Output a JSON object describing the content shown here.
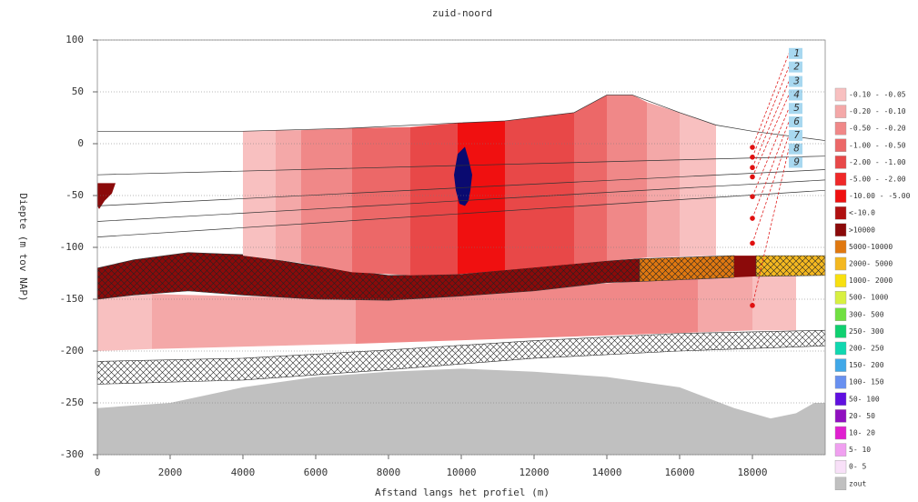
{
  "chart_data": {
    "type": "cross-section",
    "title": "zuid-noord",
    "xlabel": "Afstand langs het profiel (m)",
    "ylabel": "Diepte (m tov NAP)",
    "xlim": [
      0,
      20000
    ],
    "ylim": [
      -300,
      100
    ],
    "xticks": [
      0,
      2000,
      4000,
      6000,
      8000,
      10000,
      12000,
      14000,
      16000,
      18000
    ],
    "yticks": [
      -300,
      -250,
      -200,
      -150,
      -100,
      -50,
      0,
      50,
      100
    ],
    "grid": true,
    "zones": [
      {
        "color": "#c0c0c0",
        "x": [
          0,
          2000,
          4000,
          6000,
          8000,
          10000,
          12000,
          14000,
          16000,
          17500,
          18500,
          19200,
          19700,
          20000,
          20000,
          0
        ],
        "y": [
          -255,
          -250,
          -235,
          -225,
          -220,
          -217,
          -220,
          -225,
          -235,
          -255,
          -265,
          -260,
          -250,
          -250,
          -300,
          -300
        ]
      },
      {
        "color": "#ffffff",
        "hatch": true,
        "x": [
          0,
          4000,
          8000,
          12000,
          16000,
          20000,
          20000,
          16000,
          12000,
          8000,
          4000,
          0
        ],
        "y": [
          -210,
          -207,
          -199,
          -190,
          -183,
          -180,
          -195,
          -200,
          -207,
          -218,
          -228,
          -232
        ]
      },
      {
        "color": "#f8c0c0",
        "x": [
          0,
          1500,
          1500,
          0
        ],
        "y": [
          -150,
          -145,
          -198,
          -200
        ]
      },
      {
        "color": "#f4a8a8",
        "x": [
          1500,
          7100,
          7100,
          1500
        ],
        "y": [
          -145,
          -150,
          -193,
          -198
        ]
      },
      {
        "color": "#f08888",
        "x": [
          7100,
          16500,
          16500,
          7100
        ],
        "y": [
          -150,
          -129,
          -182,
          -193
        ]
      },
      {
        "color": "#f4a8a8",
        "x": [
          16500,
          18000,
          18000,
          16500
        ],
        "y": [
          -129,
          -128,
          -180,
          -182
        ]
      },
      {
        "color": "#f8c0c0",
        "x": [
          18000,
          19200,
          19200,
          18000
        ],
        "y": [
          -128,
          -127,
          -180,
          -180
        ]
      },
      {
        "color": "#8b0a0a",
        "hatch": true,
        "x": [
          0,
          1000,
          2500,
          4000,
          6000,
          8000,
          10000,
          12000,
          14000,
          14900,
          14900,
          14000,
          12000,
          10000,
          8000,
          6000,
          4000,
          2500,
          1000,
          0
        ],
        "y": [
          -120,
          -112,
          -105,
          -107,
          -118,
          -127,
          -126,
          -119,
          -113,
          -111,
          -133,
          -134,
          -142,
          -147,
          -151,
          -150,
          -146,
          -142,
          -146,
          -150
        ]
      },
      {
        "color": "#e07810",
        "hatch": true,
        "x": [
          14900,
          17500,
          17500,
          14900
        ],
        "y": [
          -111,
          -108,
          -129,
          -133
        ]
      },
      {
        "color": "#8b0a0a",
        "x": [
          17500,
          18100,
          18100,
          17500
        ],
        "y": [
          -108,
          -108,
          -128,
          -129
        ]
      },
      {
        "color": "#f4b820",
        "hatch": true,
        "x": [
          18100,
          20000,
          20000,
          18100
        ],
        "y": [
          -108,
          -108,
          -127,
          -128
        ]
      },
      {
        "color": "#f8c0c0",
        "x": [
          4000,
          4900,
          4900,
          4000
        ],
        "y": [
          12,
          13,
          -112,
          -108
        ]
      },
      {
        "color": "#f4a8a8",
        "x": [
          4900,
          5600,
          5600,
          4900
        ],
        "y": [
          13,
          13,
          -115,
          -112
        ]
      },
      {
        "color": "#f08888",
        "x": [
          5600,
          7000,
          7000,
          5600
        ],
        "y": [
          13,
          15,
          -124,
          -115
        ]
      },
      {
        "color": "#ec6868",
        "x": [
          7000,
          8600,
          8600,
          7000
        ],
        "y": [
          15,
          16,
          -127,
          -124
        ]
      },
      {
        "color": "#e84848",
        "x": [
          8600,
          9900,
          9900,
          8600
        ],
        "y": [
          16,
          20,
          -126,
          -127
        ]
      },
      {
        "color": "#f01010",
        "x": [
          9900,
          11200,
          11200,
          9900
        ],
        "y": [
          20,
          22,
          -122,
          -126
        ]
      },
      {
        "color": "#e84848",
        "x": [
          11200,
          13100,
          13100,
          11200
        ],
        "y": [
          22,
          30,
          -116,
          -122
        ]
      },
      {
        "color": "#ec6868",
        "x": [
          13100,
          14000,
          14000,
          13100
        ],
        "y": [
          30,
          47,
          -113,
          -116
        ]
      },
      {
        "color": "#f08888",
        "x": [
          14000,
          14700,
          15100,
          15100,
          14000
        ],
        "y": [
          47,
          47,
          40,
          -110,
          -113
        ]
      },
      {
        "color": "#f4a8a8",
        "x": [
          15100,
          16000,
          16000,
          15100
        ],
        "y": [
          40,
          30,
          -109,
          -110
        ]
      },
      {
        "color": "#f8c0c0",
        "x": [
          16000,
          17000,
          17000,
          16000
        ],
        "y": [
          30,
          18,
          -108,
          -109
        ]
      },
      {
        "color": "#0a0a70",
        "x": [
          9900,
          10100,
          10200,
          10300,
          10250,
          10200,
          10100,
          9950,
          9850,
          9800,
          9850
        ],
        "y": [
          -10,
          -3,
          -15,
          -30,
          -45,
          -55,
          -60,
          -58,
          -45,
          -30,
          -20
        ]
      },
      {
        "color": "#8b0a0a",
        "x": [
          0,
          500,
          400,
          200,
          50,
          0
        ],
        "y": [
          -38,
          -38,
          -48,
          -55,
          -63,
          -60
        ]
      }
    ],
    "lines": [
      {
        "x": [
          0,
          4000,
          7000,
          9900,
          11200,
          13100,
          14000,
          14700,
          16000,
          17000,
          18000,
          20000
        ],
        "y": [
          12,
          12,
          15,
          20,
          22,
          30,
          47,
          47,
          30,
          18,
          12,
          3
        ]
      },
      {
        "x": [
          0,
          20000
        ],
        "y": [
          -30,
          -12
        ]
      },
      {
        "x": [
          0,
          20000
        ],
        "y": [
          -60,
          -25
        ]
      },
      {
        "x": [
          0,
          20000
        ],
        "y": [
          -75,
          -35
        ]
      },
      {
        "x": [
          0,
          20000
        ],
        "y": [
          -90,
          -45
        ]
      }
    ],
    "boreholes": {
      "labels": [
        "1",
        "2",
        "3",
        "4",
        "5",
        "6",
        "7",
        "8",
        "9"
      ],
      "x": [
        19200,
        19200,
        19200,
        19200,
        19200,
        19200,
        19200,
        19200,
        19200
      ],
      "y": [
        87,
        74,
        60,
        47,
        34,
        21,
        8,
        -5,
        -18
      ]
    },
    "samples": {
      "x": [
        18000,
        18000,
        18000,
        18000,
        18000,
        18000,
        18000,
        18000
      ],
      "y": [
        -3.5,
        -13,
        -23,
        -32,
        -51,
        -72,
        -96,
        -156
      ]
    },
    "legend": [
      {
        "label": "-0.10 - -0.05",
        "color": "#f8c0c0"
      },
      {
        "label": "-0.20 - -0.10",
        "color": "#f4a8a8"
      },
      {
        "label": "-0.50 - -0.20",
        "color": "#f08888"
      },
      {
        "label": "-1.00 - -0.50",
        "color": "#ec6868"
      },
      {
        "label": "-2.00 - -1.00",
        "color": "#e84848"
      },
      {
        "label": "-5.00 - -2.00",
        "color": "#f02828"
      },
      {
        "label": "-10.00 - -5.00",
        "color": "#f01010"
      },
      {
        "label": "<-10.0",
        "color": "#b01010"
      },
      {
        "label": ">10000",
        "color": "#8b0a0a"
      },
      {
        "label": "5000-10000",
        "color": "#e07810"
      },
      {
        "label": "2000- 5000",
        "color": "#f4b820"
      },
      {
        "label": "1000- 2000",
        "color": "#f8e010"
      },
      {
        "label": "500- 1000",
        "color": "#d8f040"
      },
      {
        "label": "300- 500",
        "color": "#70e040"
      },
      {
        "label": "250- 300",
        "color": "#10d070"
      },
      {
        "label": "200- 250",
        "color": "#10d8b0"
      },
      {
        "label": "150- 200",
        "color": "#40a8e8"
      },
      {
        "label": "100- 150",
        "color": "#6890f0"
      },
      {
        "label": "50- 100",
        "color": "#6010e0"
      },
      {
        "label": "20- 50",
        "color": "#9010c0"
      },
      {
        "label": "10- 20",
        "color": "#e020d0"
      },
      {
        "label": "5- 10",
        "color": "#f0a0f0"
      },
      {
        "label": "0- 5",
        "color": "#f8e0f8"
      },
      {
        "label": "zout",
        "color": "#c0c0c0"
      }
    ]
  }
}
